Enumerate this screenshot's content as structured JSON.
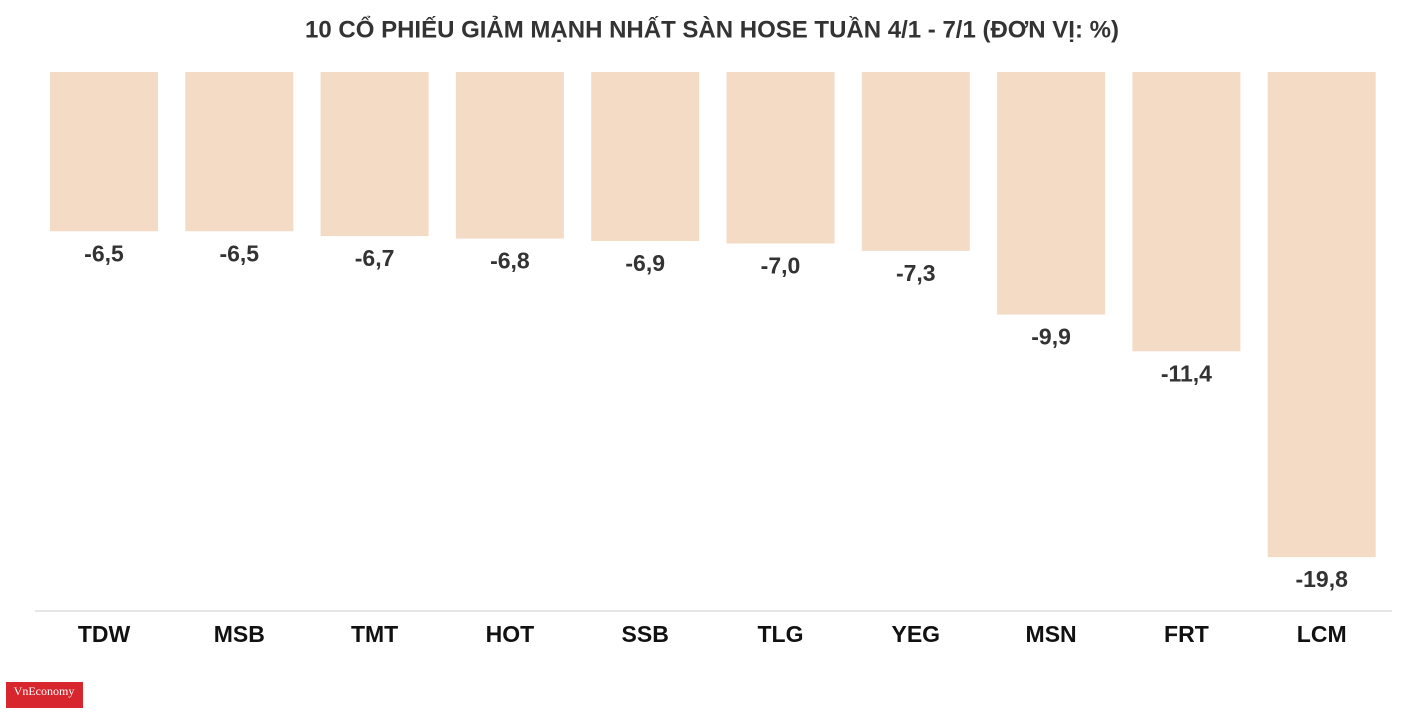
{
  "chart_data": {
    "type": "bar",
    "title": "10 CỔ PHIẾU GIẢM MẠNH NHẤT SÀN HOSE TUẦN 4/1 - 7/1 (ĐƠN VỊ: %)",
    "categories": [
      "TDW",
      "MSB",
      "TMT",
      "HOT",
      "SSB",
      "TLG",
      "YEG",
      "MSN",
      "FRT",
      "LCM"
    ],
    "values": [
      -6.5,
      -6.5,
      -6.7,
      -6.8,
      -6.9,
      -7.0,
      -7.3,
      -9.9,
      -11.4,
      -19.8
    ],
    "value_labels": [
      "-6,5",
      "-6,5",
      "-6,7",
      "-6,8",
      "-6,9",
      "-7,0",
      "-7,3",
      "-9,9",
      "-11,4",
      "-19,8"
    ],
    "color": "#f3dbc6",
    "logo": "VnEconomy"
  }
}
